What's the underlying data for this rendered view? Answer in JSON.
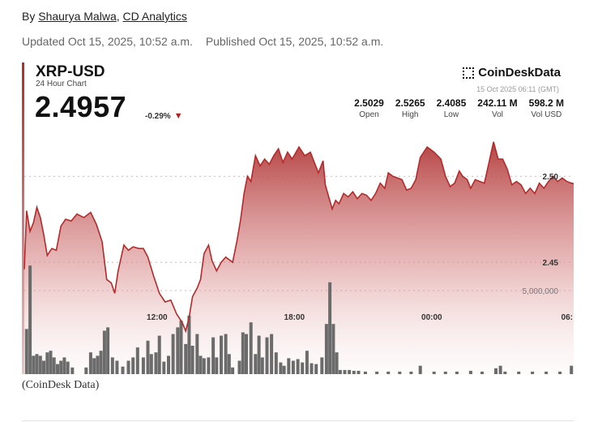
{
  "byline": {
    "prefix": "By ",
    "author": "Shaurya Malwa",
    "separator": ", ",
    "org": "CD Analytics"
  },
  "dates": {
    "updated": "Updated Oct 15, 2025, 10:52 a.m.",
    "published": "Published Oct 15, 2025, 10:52 a.m."
  },
  "chart_header": {
    "ticker": "XRP-USD",
    "subtitle": "24 Hour Chart",
    "price": "2.4957",
    "change": "-0.29%",
    "brand": "CoinDeskData",
    "timestamp": "15 Oct 2025 06:11 (GMT)",
    "stats": [
      {
        "value": "2.5029",
        "label": "Open"
      },
      {
        "value": "2.5265",
        "label": "High"
      },
      {
        "value": "2.4085",
        "label": "Low"
      },
      {
        "value": "242.11 M",
        "label": "Vol"
      },
      {
        "value": "598.2 M",
        "label": "Vol USD"
      }
    ]
  },
  "colors": {
    "line": "#b32a2a",
    "fill_top": "#b23a3a",
    "volume": "#6b6b6b",
    "down": "#b32020"
  },
  "chart_data": {
    "type": "line",
    "title": "XRP-USD",
    "subtitle": "24 Hour Chart",
    "y_ticks": [
      "2.50",
      "2.45"
    ],
    "y_tick_values": [
      2.5,
      2.45
    ],
    "volume_tick": "5,000,000",
    "x_ticks": [
      {
        "label": "12:00",
        "hour": 12
      },
      {
        "label": "18:00",
        "hour": 18
      },
      {
        "label": "00:00",
        "hour": 24
      },
      {
        "label": "06:",
        "hour": 30
      }
    ],
    "x_range": [
      6.2,
      30.2
    ],
    "ylim": [
      2.385,
      2.535
    ],
    "vol_max": 6800000,
    "grid": true,
    "price": [
      [
        6.2,
        2.446
      ],
      [
        6.3,
        2.48
      ],
      [
        6.45,
        2.468
      ],
      [
        6.6,
        2.473
      ],
      [
        6.75,
        2.482
      ],
      [
        6.9,
        2.476
      ],
      [
        7.05,
        2.466
      ],
      [
        7.2,
        2.454
      ],
      [
        7.4,
        2.458
      ],
      [
        7.6,
        2.457
      ],
      [
        7.8,
        2.471
      ],
      [
        8.0,
        2.475
      ],
      [
        8.25,
        2.474
      ],
      [
        8.5,
        2.478
      ],
      [
        8.8,
        2.476
      ],
      [
        9.1,
        2.479
      ],
      [
        9.35,
        2.472
      ],
      [
        9.6,
        2.462
      ],
      [
        9.8,
        2.44
      ],
      [
        10.0,
        2.438
      ],
      [
        10.15,
        2.432
      ],
      [
        10.3,
        2.445
      ],
      [
        10.55,
        2.46
      ],
      [
        10.75,
        2.457
      ],
      [
        10.95,
        2.459
      ],
      [
        11.2,
        2.458
      ],
      [
        11.4,
        2.458
      ],
      [
        11.6,
        2.453
      ],
      [
        11.85,
        2.442
      ],
      [
        12.1,
        2.432
      ],
      [
        12.35,
        2.427
      ],
      [
        12.6,
        2.428
      ],
      [
        12.85,
        2.42
      ],
      [
        13.1,
        2.415
      ],
      [
        13.25,
        2.41
      ],
      [
        13.4,
        2.418
      ],
      [
        13.55,
        2.43
      ],
      [
        13.75,
        2.435
      ],
      [
        13.9,
        2.44
      ],
      [
        14.05,
        2.455
      ],
      [
        14.25,
        2.46
      ],
      [
        14.4,
        2.451
      ],
      [
        14.6,
        2.445
      ],
      [
        14.8,
        2.45
      ],
      [
        15.0,
        2.453
      ],
      [
        15.3,
        2.45
      ],
      [
        15.5,
        2.463
      ],
      [
        15.65,
        2.475
      ],
      [
        15.8,
        2.49
      ],
      [
        15.95,
        2.5
      ],
      [
        16.1,
        2.497
      ],
      [
        16.3,
        2.512
      ],
      [
        16.5,
        2.506
      ],
      [
        16.7,
        2.51
      ],
      [
        16.9,
        2.507
      ],
      [
        17.1,
        2.512
      ],
      [
        17.3,
        2.516
      ],
      [
        17.5,
        2.508
      ],
      [
        17.7,
        2.514
      ],
      [
        17.9,
        2.51
      ],
      [
        18.2,
        2.517
      ],
      [
        18.45,
        2.512
      ],
      [
        18.7,
        2.514
      ],
      [
        18.9,
        2.507
      ],
      [
        19.05,
        2.502
      ],
      [
        19.25,
        2.509
      ],
      [
        19.35,
        2.495
      ],
      [
        19.5,
        2.488
      ],
      [
        19.65,
        2.481
      ],
      [
        19.8,
        2.486
      ],
      [
        19.95,
        2.484
      ],
      [
        20.15,
        2.49
      ],
      [
        20.35,
        2.488
      ],
      [
        20.55,
        2.491
      ],
      [
        20.75,
        2.487
      ],
      [
        20.95,
        2.49
      ],
      [
        21.15,
        2.489
      ],
      [
        21.35,
        2.486
      ],
      [
        21.55,
        2.49
      ],
      [
        21.75,
        2.496
      ],
      [
        21.95,
        2.493
      ],
      [
        22.1,
        2.502
      ],
      [
        22.3,
        2.5
      ],
      [
        22.5,
        2.499
      ],
      [
        22.7,
        2.498
      ],
      [
        22.9,
        2.492
      ],
      [
        23.1,
        2.493
      ],
      [
        23.3,
        2.498
      ],
      [
        23.5,
        2.511
      ],
      [
        23.8,
        2.517
      ],
      [
        24.1,
        2.514
      ],
      [
        24.4,
        2.51
      ],
      [
        24.6,
        2.5
      ],
      [
        24.8,
        2.494
      ],
      [
        25.0,
        2.496
      ],
      [
        25.2,
        2.503
      ],
      [
        25.35,
        2.5
      ],
      [
        25.55,
        2.498
      ],
      [
        25.7,
        2.493
      ],
      [
        25.9,
        2.498
      ],
      [
        26.1,
        2.497
      ],
      [
        26.3,
        2.496
      ],
      [
        26.5,
        2.508
      ],
      [
        26.7,
        2.52
      ],
      [
        26.9,
        2.51
      ],
      [
        27.1,
        2.51
      ],
      [
        27.3,
        2.504
      ],
      [
        27.5,
        2.495
      ],
      [
        27.7,
        2.497
      ],
      [
        27.9,
        2.495
      ],
      [
        28.1,
        2.49
      ],
      [
        28.3,
        2.493
      ],
      [
        28.5,
        2.49
      ],
      [
        28.7,
        2.496
      ],
      [
        28.9,
        2.493
      ],
      [
        29.1,
        2.497
      ],
      [
        29.3,
        2.5
      ],
      [
        29.5,
        2.497
      ],
      [
        29.7,
        2.499
      ],
      [
        29.9,
        2.497
      ],
      [
        30.1,
        2.496
      ],
      [
        30.2,
        2.4957
      ]
    ],
    "volume": [
      [
        6.3,
        2700000
      ],
      [
        6.45,
        6500000
      ],
      [
        6.6,
        1100000
      ],
      [
        6.75,
        1200000
      ],
      [
        6.9,
        1100000
      ],
      [
        7.05,
        800000
      ],
      [
        7.2,
        1300000
      ],
      [
        7.35,
        1400000
      ],
      [
        7.5,
        1000000
      ],
      [
        7.65,
        600000
      ],
      [
        7.8,
        800000
      ],
      [
        7.95,
        1000000
      ],
      [
        8.1,
        750000
      ],
      [
        8.3,
        400000
      ],
      [
        8.9,
        400000
      ],
      [
        9.1,
        1300000
      ],
      [
        9.25,
        950000
      ],
      [
        9.4,
        1100000
      ],
      [
        9.55,
        1400000
      ],
      [
        9.7,
        2600000
      ],
      [
        9.85,
        2800000
      ],
      [
        10.05,
        1000000
      ],
      [
        10.25,
        800000
      ],
      [
        10.5,
        450000
      ],
      [
        10.75,
        800000
      ],
      [
        10.95,
        1000000
      ],
      [
        11.15,
        1600000
      ],
      [
        11.4,
        1000000
      ],
      [
        11.6,
        2000000
      ],
      [
        11.75,
        1200000
      ],
      [
        11.95,
        1300000
      ],
      [
        12.1,
        2300000
      ],
      [
        12.3,
        750000
      ],
      [
        12.5,
        1100000
      ],
      [
        12.7,
        2400000
      ],
      [
        12.9,
        2800000
      ],
      [
        13.05,
        3200000
      ],
      [
        13.25,
        1800000
      ],
      [
        13.4,
        3500000
      ],
      [
        13.55,
        1700000
      ],
      [
        13.75,
        2400000
      ],
      [
        13.9,
        1100000
      ],
      [
        14.05,
        950000
      ],
      [
        14.25,
        1000000
      ],
      [
        14.45,
        2200000
      ],
      [
        14.6,
        1000000
      ],
      [
        14.8,
        2300000
      ],
      [
        15.0,
        2400000
      ],
      [
        15.15,
        1200000
      ],
      [
        15.3,
        400000
      ],
      [
        15.6,
        800000
      ],
      [
        15.75,
        2500000
      ],
      [
        15.9,
        2400000
      ],
      [
        16.1,
        3100000
      ],
      [
        16.3,
        1200000
      ],
      [
        16.45,
        2300000
      ],
      [
        16.6,
        1000000
      ],
      [
        16.8,
        2200000
      ],
      [
        17.0,
        2400000
      ],
      [
        17.2,
        1300000
      ],
      [
        17.4,
        700000
      ],
      [
        17.55,
        500000
      ],
      [
        17.75,
        950000
      ],
      [
        17.95,
        800000
      ],
      [
        18.15,
        900000
      ],
      [
        18.35,
        700000
      ],
      [
        18.55,
        1400000
      ],
      [
        18.75,
        650000
      ],
      [
        18.95,
        600000
      ],
      [
        19.2,
        1000000
      ],
      [
        19.4,
        3000000
      ],
      [
        19.55,
        5500000
      ],
      [
        19.7,
        3000000
      ],
      [
        19.85,
        1300000
      ],
      [
        20.0,
        250000
      ],
      [
        20.2,
        250000
      ],
      [
        20.4,
        250000
      ],
      [
        20.6,
        200000
      ],
      [
        20.8,
        200000
      ],
      [
        21.1,
        150000
      ],
      [
        21.6,
        150000
      ],
      [
        22.1,
        150000
      ],
      [
        22.6,
        150000
      ],
      [
        23.1,
        150000
      ],
      [
        23.5,
        500000
      ],
      [
        24.1,
        150000
      ],
      [
        24.6,
        150000
      ],
      [
        25.1,
        150000
      ],
      [
        25.7,
        200000
      ],
      [
        26.2,
        150000
      ],
      [
        26.8,
        350000
      ],
      [
        27.0,
        500000
      ],
      [
        27.2,
        150000
      ],
      [
        27.8,
        150000
      ],
      [
        28.4,
        150000
      ],
      [
        29.0,
        150000
      ],
      [
        29.6,
        150000
      ],
      [
        30.1,
        500000
      ]
    ]
  },
  "caption": "(CoinDesk Data)"
}
